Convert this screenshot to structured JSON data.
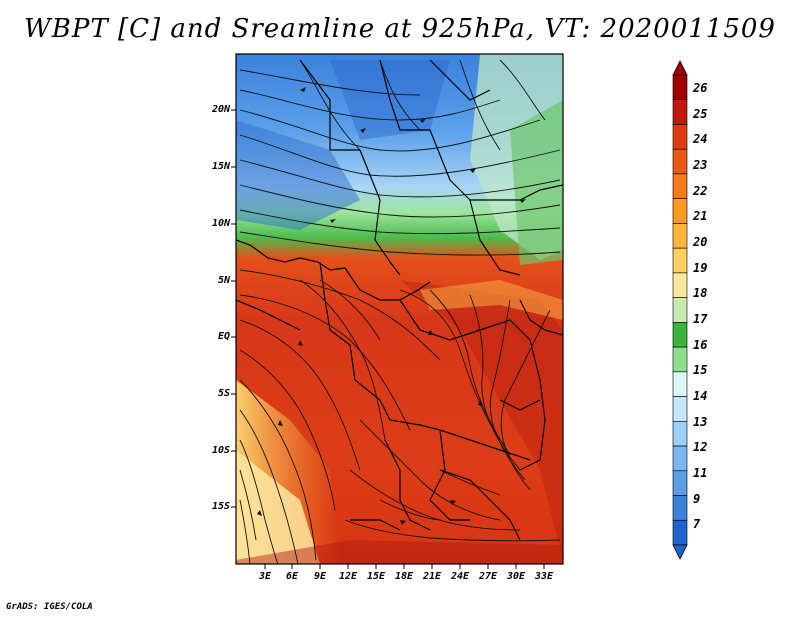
{
  "title": "WBPT [C] and Sreamline at 925hPa, VT: 2020011509",
  "credit": "GrADS: IGES/COLA",
  "lat_labels": [
    "20N",
    "15N",
    "10N",
    "5N",
    "EQ",
    "5S",
    "10S",
    "15S"
  ],
  "lon_labels": [
    "3E",
    "6E",
    "9E",
    "12E",
    "15E",
    "18E",
    "21E",
    "24E",
    "27E",
    "30E",
    "33E"
  ],
  "colorbar": {
    "labels": [
      "26",
      "25",
      "24",
      "23",
      "22",
      "21",
      "20",
      "19",
      "18",
      "17",
      "16",
      "15",
      "14",
      "13",
      "12",
      "11",
      "9",
      "7"
    ],
    "colors": [
      "#a00000",
      "#c21a0a",
      "#dc3c10",
      "#ea5a14",
      "#f47a1a",
      "#f89a24",
      "#fbb53a",
      "#fccf60",
      "#fbe89a",
      "#c8ecb0",
      "#3cb43c",
      "#8ede8e",
      "#dcf6f4",
      "#c4e6fa",
      "#9ecff8",
      "#7ab6f0",
      "#5a9ee6",
      "#3a82dc",
      "#1f64cc"
    ]
  }
}
